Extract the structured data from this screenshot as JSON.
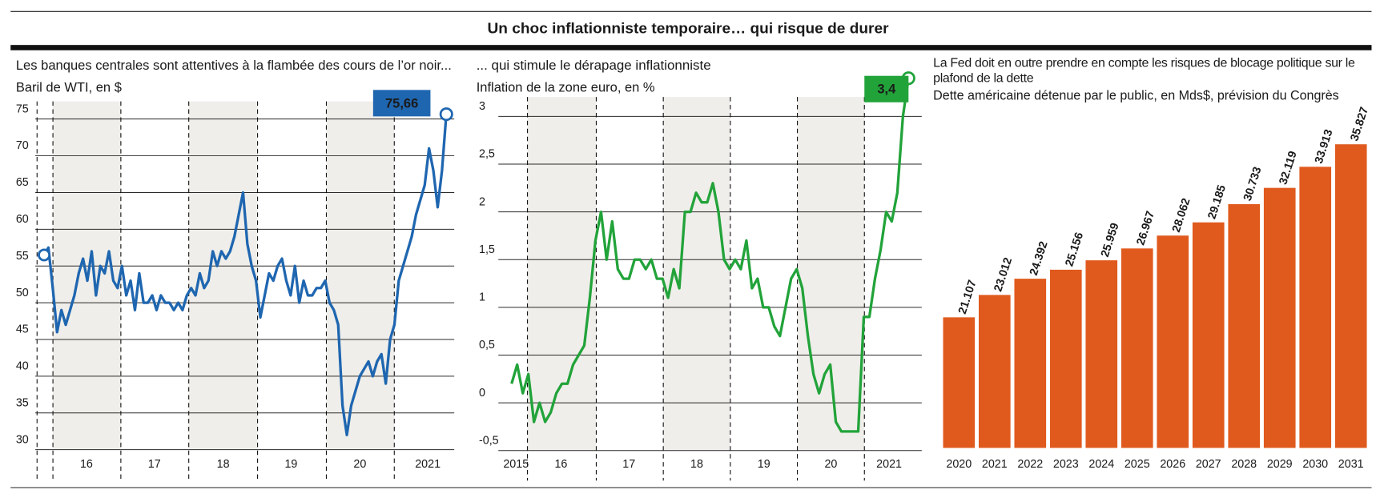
{
  "title": "Un choc inflationniste temporaire… qui risque de durer",
  "chart_data": [
    {
      "type": "line",
      "title": "Les banques centrales sont attentives à la flambée des cours de l’or noir...",
      "subtitle": "Baril de WTI, en $",
      "x_labels": [
        "16",
        "17",
        "18",
        "19",
        "20",
        "2021"
      ],
      "values": [
        56.5,
        57.5,
        52,
        46,
        49,
        47,
        49,
        51,
        54,
        56,
        53,
        57,
        51,
        55,
        54,
        57,
        53,
        52,
        55,
        51,
        53,
        49,
        54,
        50,
        50,
        51,
        49,
        51,
        50,
        50,
        49,
        50,
        49,
        51,
        52,
        51,
        54,
        52,
        53,
        57,
        55,
        57,
        56,
        57,
        59,
        62,
        65,
        58,
        55,
        53,
        48,
        51,
        54,
        53,
        55,
        56,
        53,
        51,
        55,
        50,
        53,
        51,
        51,
        52,
        52,
        53,
        50,
        49,
        47,
        36,
        32,
        36,
        38,
        40,
        41,
        42,
        40,
        42,
        43,
        39,
        45,
        47,
        53,
        55,
        57,
        59,
        62,
        64,
        66,
        71,
        68,
        63,
        68,
        75.66
      ],
      "end_label": "75,66",
      "color": "#1f66b0",
      "ylim": [
        30,
        75
      ],
      "yticks": [
        30,
        35,
        40,
        45,
        50,
        55,
        60,
        65,
        70,
        75
      ],
      "grid": true
    },
    {
      "type": "line",
      "title": "... qui stimule le dérapage inflationniste",
      "subtitle": "Inflation de la zone euro, en %",
      "x_labels": [
        "2015",
        "16",
        "17",
        "18",
        "19",
        "20",
        "2021"
      ],
      "values": [
        0.2,
        0.4,
        0.1,
        0.3,
        -0.2,
        0.0,
        -0.2,
        -0.1,
        0.1,
        0.2,
        0.2,
        0.4,
        0.5,
        0.6,
        1.1,
        1.7,
        2.0,
        1.5,
        1.9,
        1.4,
        1.3,
        1.3,
        1.5,
        1.5,
        1.4,
        1.5,
        1.3,
        1.3,
        1.1,
        1.4,
        1.2,
        2.0,
        2.0,
        2.2,
        2.1,
        2.1,
        2.3,
        2.0,
        1.5,
        1.4,
        1.5,
        1.4,
        1.7,
        1.2,
        1.3,
        1.0,
        1.0,
        0.8,
        0.7,
        1.0,
        1.3,
        1.4,
        1.2,
        0.7,
        0.3,
        0.1,
        0.3,
        0.4,
        -0.2,
        -0.3,
        -0.3,
        -0.3,
        -0.3,
        0.9,
        0.9,
        1.3,
        1.6,
        2.0,
        1.9,
        2.2,
        3.0,
        3.4
      ],
      "end_label": "3,4",
      "color": "#22a33a",
      "ylim": [
        -0.5,
        3
      ],
      "yticks": [
        {
          "value": -0.5,
          "label": "-0,5"
        },
        0,
        {
          "value": 0.5,
          "label": "0,5"
        },
        1,
        {
          "value": 1.5,
          "label": "1,5"
        },
        2,
        {
          "value": 2.5,
          "label": "2,5"
        },
        3
      ],
      "grid": true
    },
    {
      "type": "bar",
      "title": "La Fed doit en outre prendre en compte les risques de blocage politique sur le plafond de la dette",
      "subtitle": "Dette américaine détenue par le public, en Mds$, prévision du Congrès",
      "categories": [
        "2020",
        "2021",
        "2022",
        "2023",
        "2024",
        "2025",
        "2026",
        "2027",
        "2028",
        "2029",
        "2030",
        "2031"
      ],
      "values": [
        21107,
        23012,
        24392,
        25156,
        25959,
        26967,
        28062,
        29185,
        30733,
        32119,
        33913,
        35827
      ],
      "value_labels": [
        "21.107",
        "23.012",
        "24.392",
        "25.156",
        "25.959",
        "26.967",
        "28.062",
        "29.185",
        "30.733",
        "32.119",
        "33.913",
        "35.827"
      ],
      "color": "#e05a1e",
      "ylim": [
        10000,
        40000
      ]
    }
  ]
}
